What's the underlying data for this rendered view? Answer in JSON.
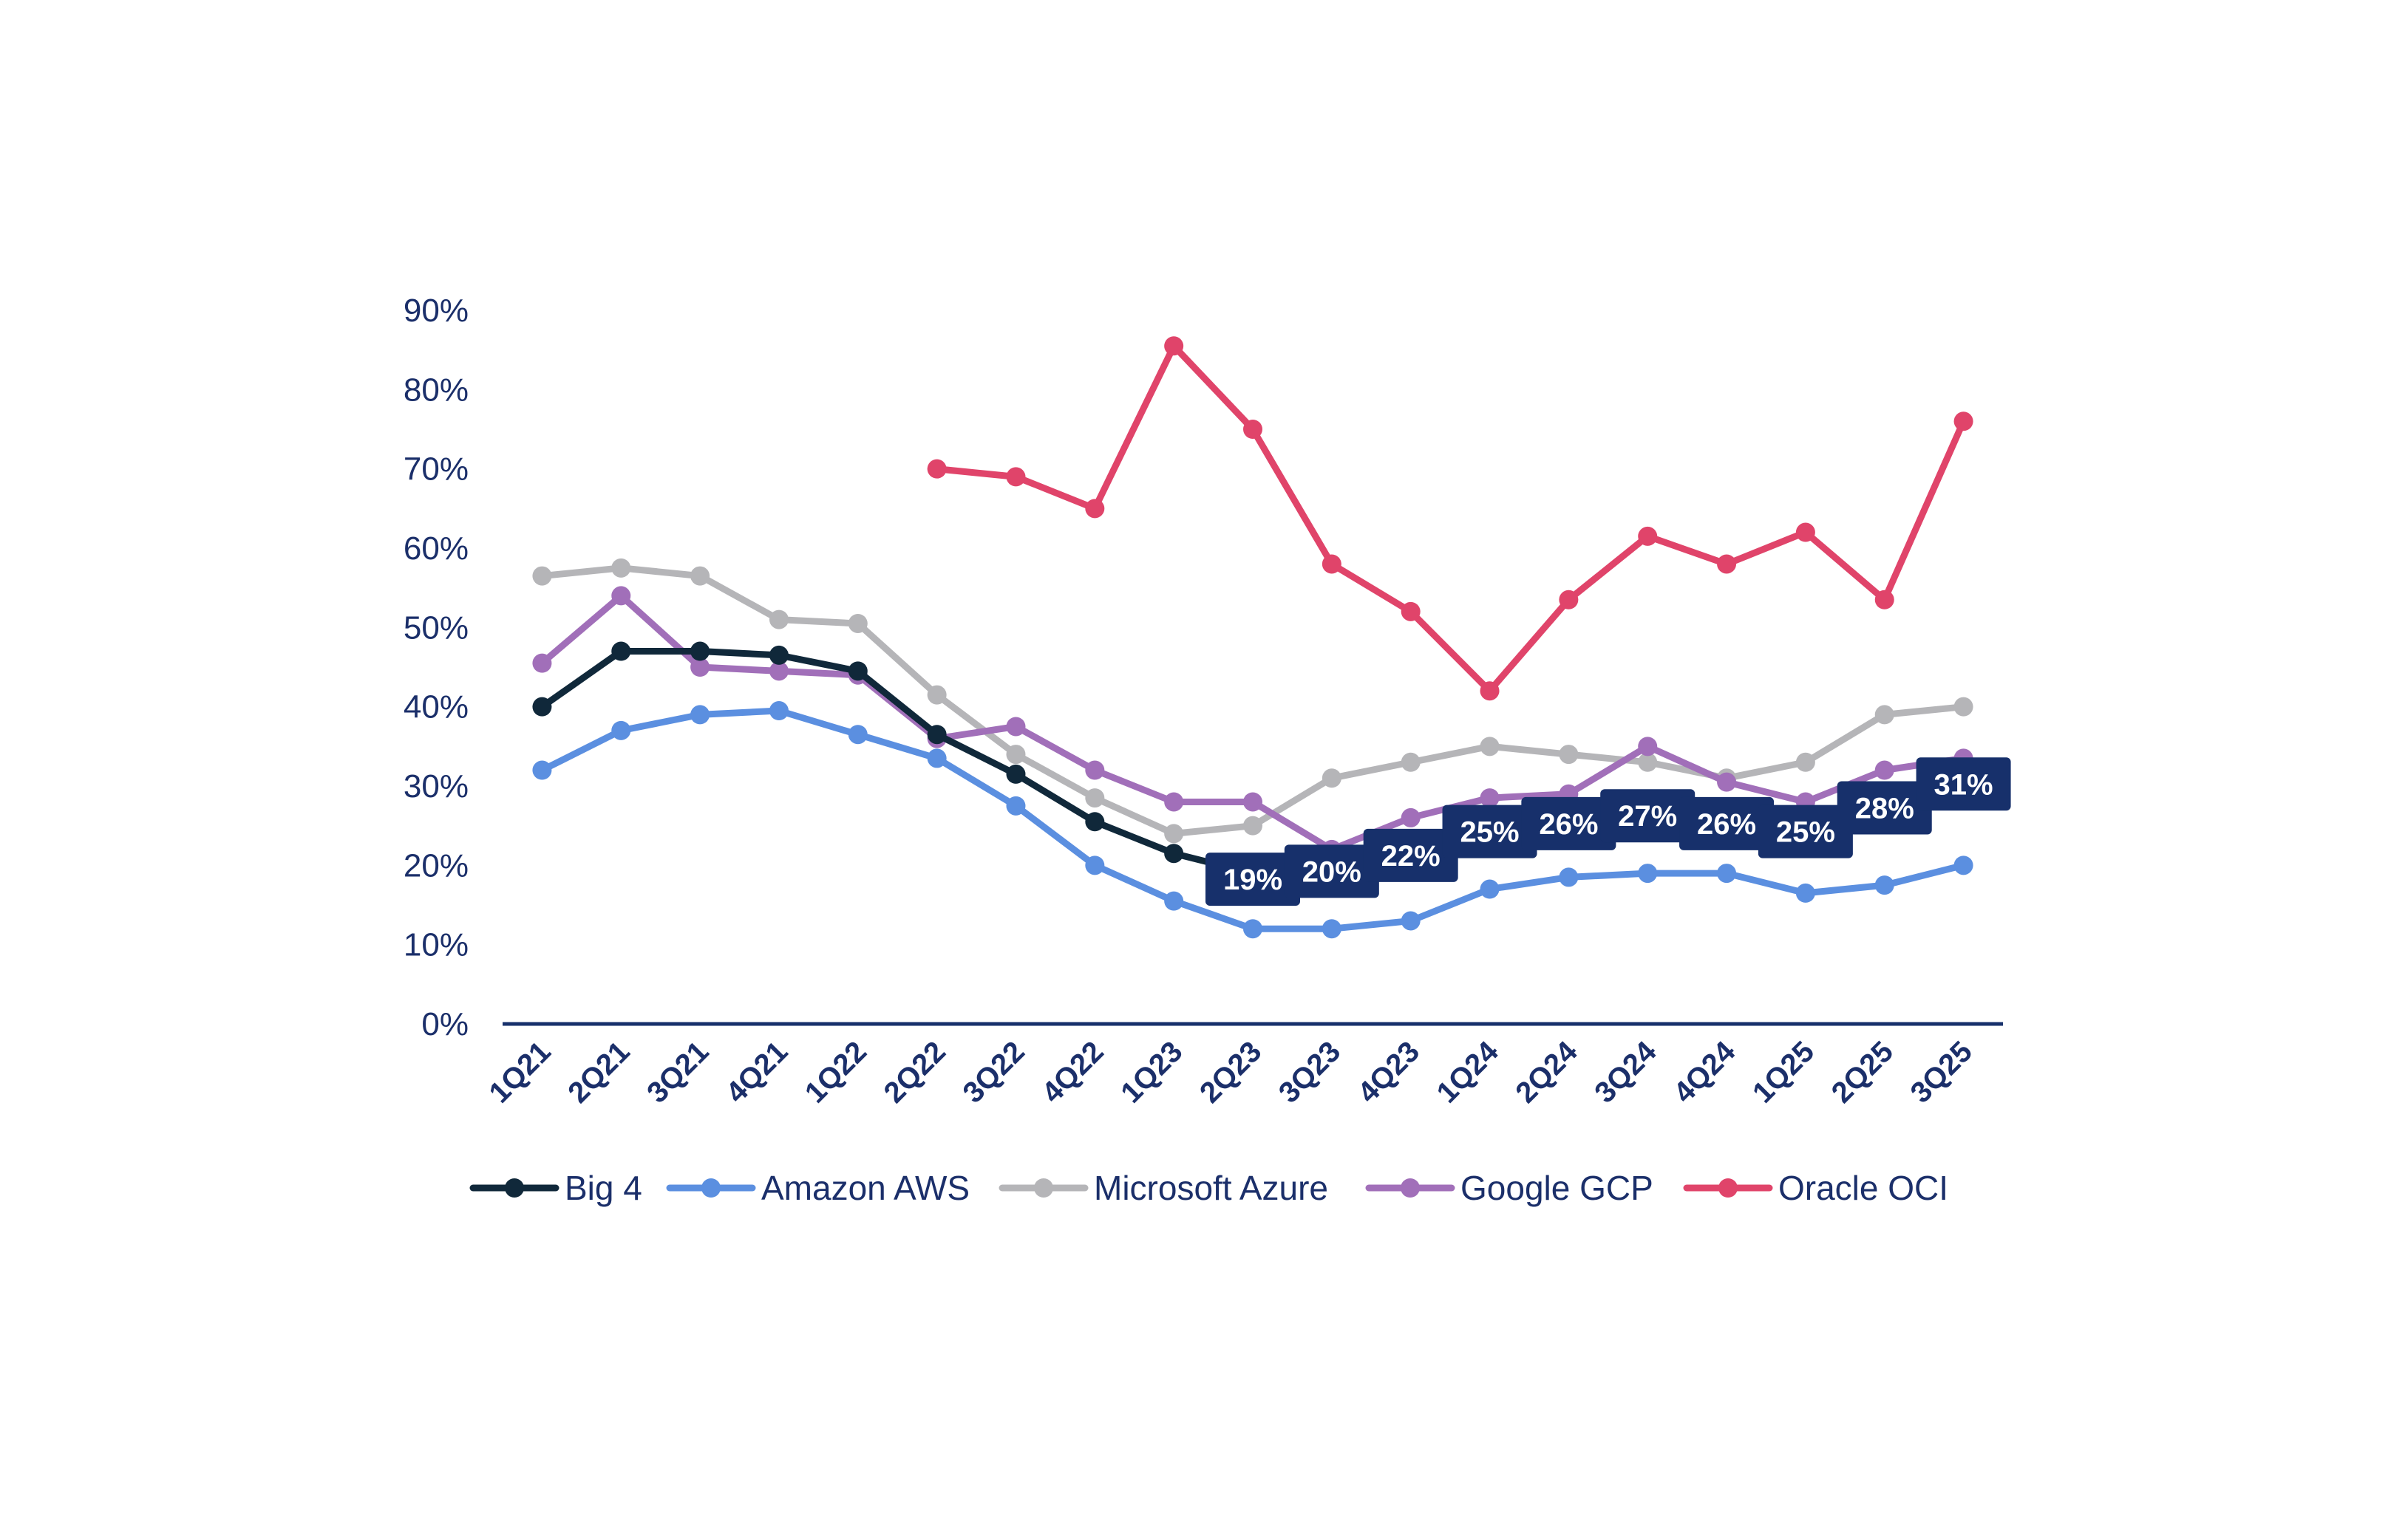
{
  "chart_data": {
    "type": "line",
    "categories": [
      "1Q21",
      "2Q21",
      "3Q21",
      "4Q21",
      "1Q22",
      "2Q22",
      "3Q22",
      "4Q22",
      "1Q23",
      "2Q23",
      "3Q23",
      "4Q23",
      "1Q24",
      "2Q24",
      "3Q24",
      "4Q24",
      "1Q25",
      "2Q25",
      "3Q25"
    ],
    "ylim": [
      0,
      90
    ],
    "yticks": [
      0,
      10,
      20,
      30,
      40,
      50,
      60,
      70,
      80,
      90
    ],
    "ytick_labels": [
      "0%",
      "10%",
      "20%",
      "30%",
      "40%",
      "50%",
      "60%",
      "70%",
      "80%",
      "90%"
    ],
    "title": "",
    "xlabel": "",
    "ylabel": "",
    "grid": false,
    "legend_position": "bottom",
    "series": [
      {
        "name": "Big 4",
        "color": "#10283a",
        "values": [
          40,
          47,
          47,
          46.5,
          44.5,
          36.5,
          31.5,
          25.5,
          21.5,
          19,
          20,
          22,
          25,
          26,
          27,
          26,
          25,
          28,
          31
        ],
        "data_labels_from": 9
      },
      {
        "name": "Amazon AWS",
        "color": "#5b8fe0",
        "values": [
          32,
          37,
          39,
          39.5,
          36.5,
          33.5,
          27.5,
          20,
          15.5,
          12,
          12,
          13,
          17,
          18.5,
          19,
          19,
          16.5,
          17.5,
          20
        ]
      },
      {
        "name": "Microsoft Azure",
        "color": "#b5b5b8",
        "values": [
          56.5,
          57.5,
          56.5,
          51,
          50.5,
          41.5,
          34,
          28.5,
          24,
          25,
          31,
          33,
          35,
          34,
          33,
          31,
          33,
          39,
          40
        ]
      },
      {
        "name": "Google GCP",
        "color": "#a16fb9",
        "values": [
          45.5,
          54,
          45,
          44.5,
          44,
          36,
          37.5,
          32,
          28,
          28,
          22,
          26,
          28.5,
          29,
          35,
          30.5,
          28,
          32,
          33.5
        ]
      },
      {
        "name": "Oracle OCI",
        "color": "#e0446a",
        "values": [
          null,
          null,
          null,
          null,
          null,
          70,
          69,
          65,
          85.5,
          75,
          58,
          52,
          42,
          53.5,
          61.5,
          58,
          62,
          53.5,
          76
        ]
      }
    ],
    "data_labels": [
      "19%",
      "20%",
      "22%",
      "25%",
      "26%",
      "27%",
      "26%",
      "25%",
      "28%",
      "31%"
    ],
    "data_label_color": "#17306b",
    "axis_color": "#17306b"
  }
}
